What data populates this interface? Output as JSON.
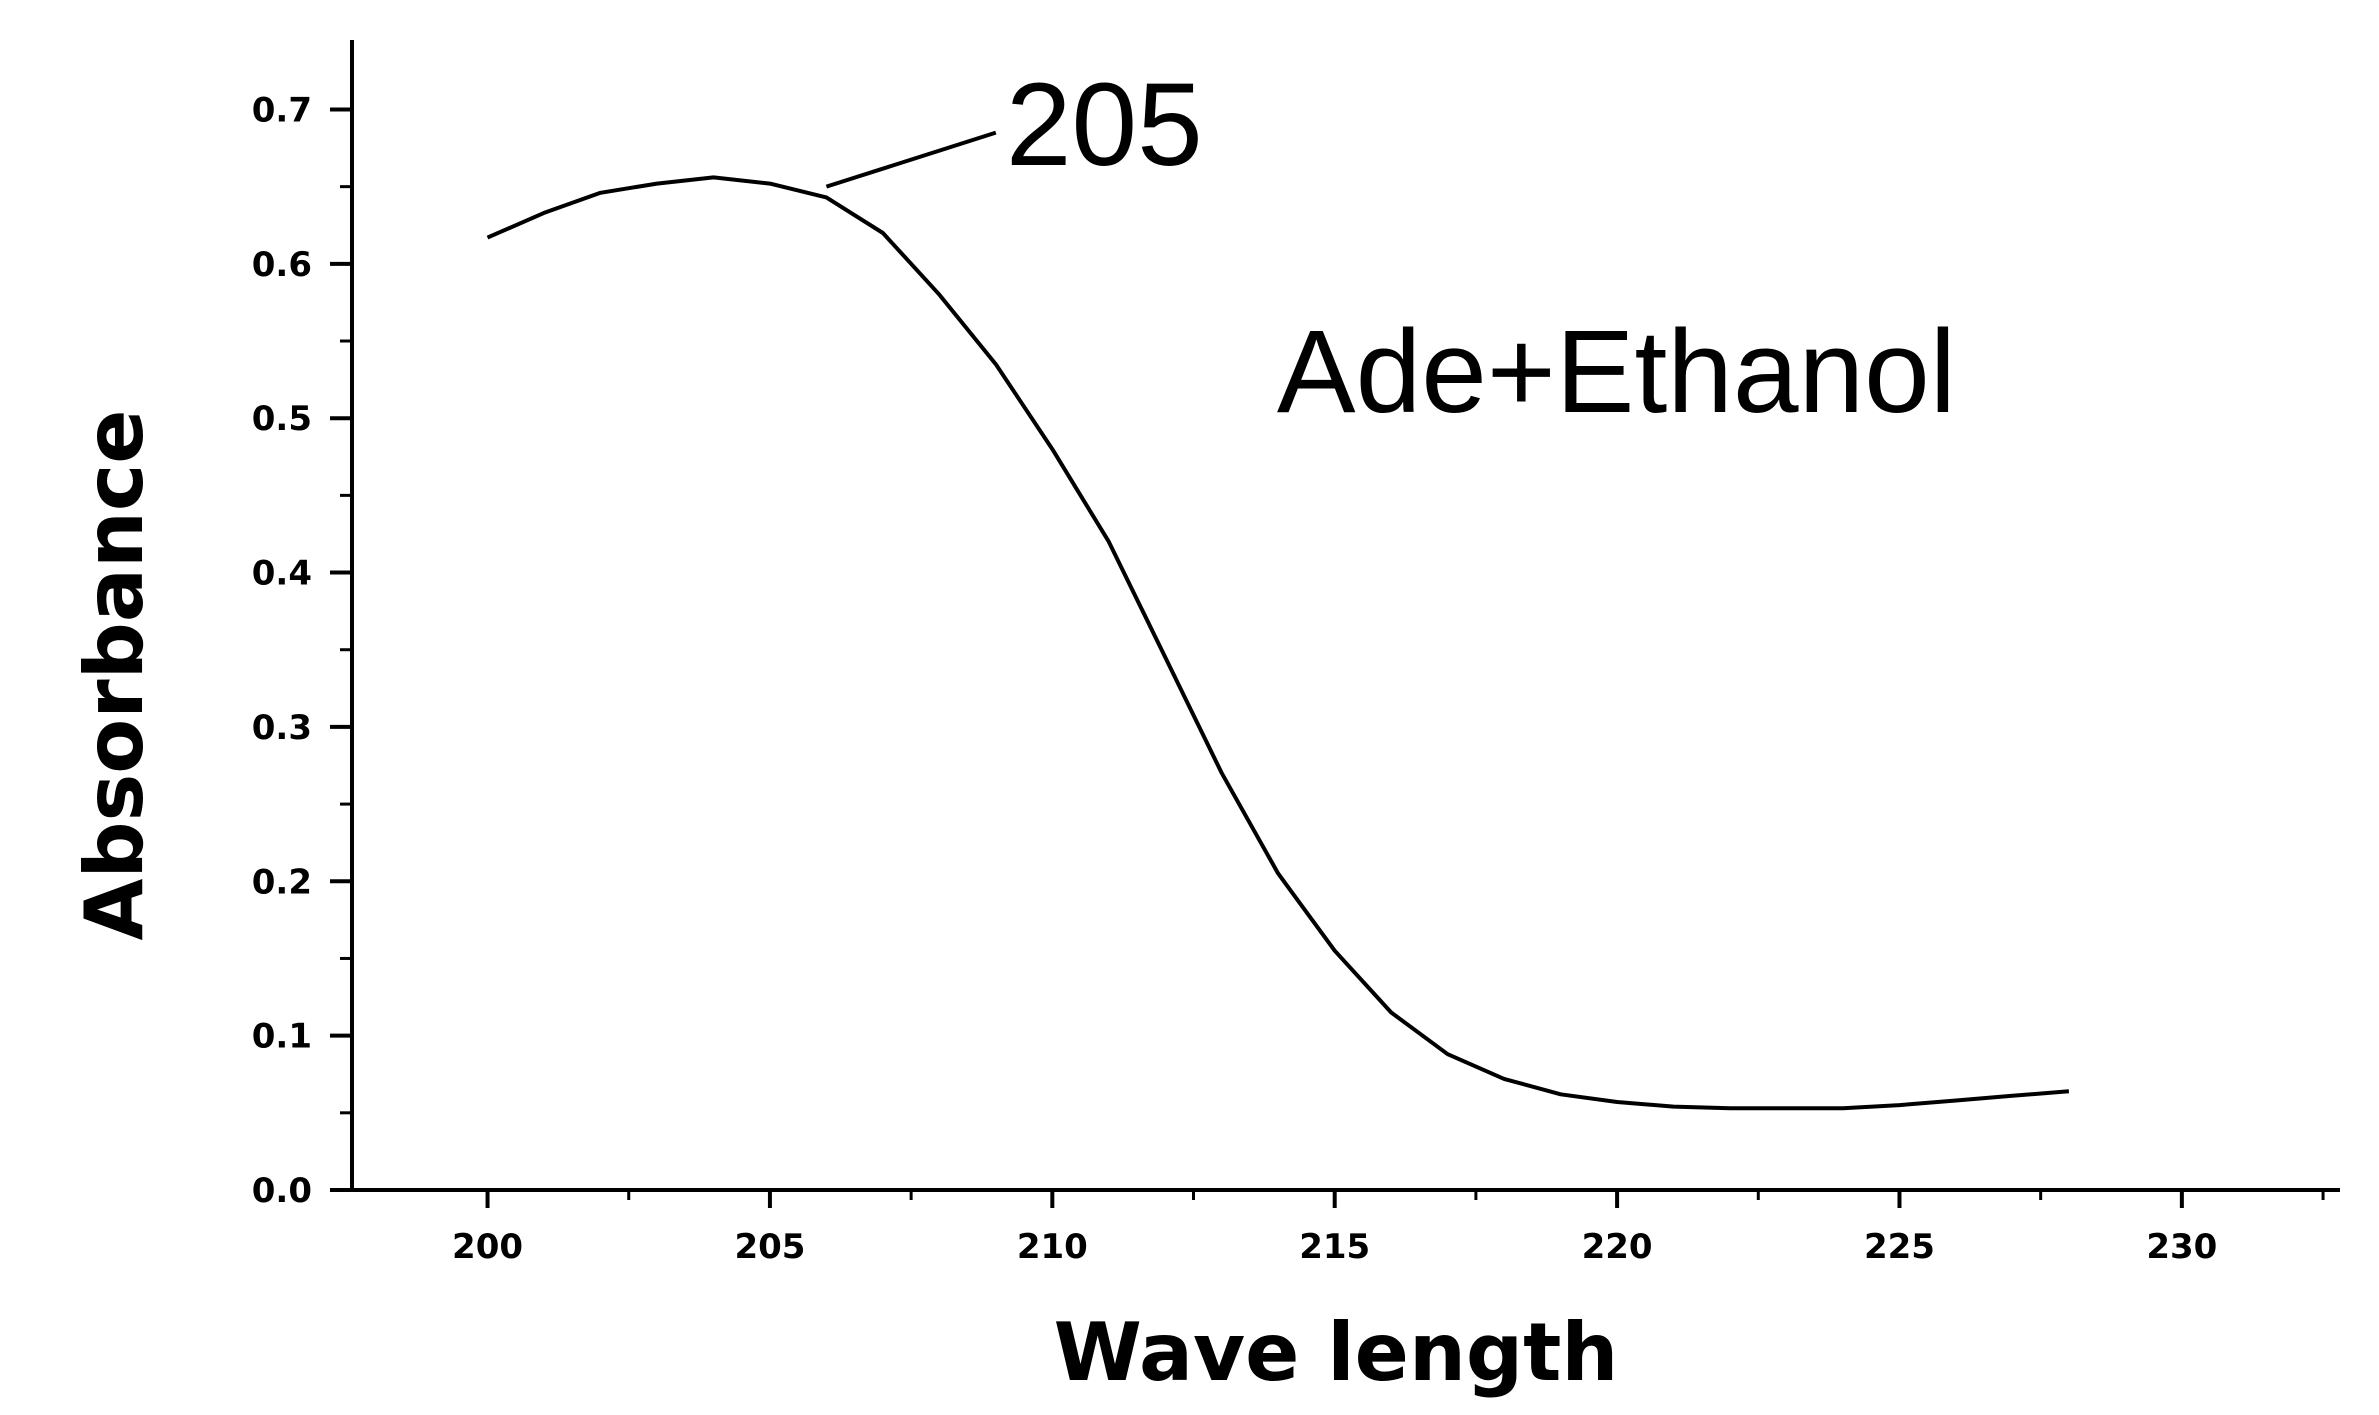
{
  "chart_data": {
    "type": "line",
    "title": "",
    "xlabel": "Wave length",
    "ylabel": "Absorbance",
    "xlim": [
      197.6,
      232.8
    ],
    "ylim": [
      0.0,
      0.745
    ],
    "x_ticks": [
      200,
      205,
      210,
      215,
      220,
      225,
      230
    ],
    "x_tick_labels": [
      "200",
      "205",
      "210",
      "215",
      "220",
      "225",
      "230"
    ],
    "y_ticks": [
      0.0,
      0.1,
      0.2,
      0.3,
      0.4,
      0.5,
      0.6,
      0.7
    ],
    "y_tick_labels": [
      "0.0",
      "0.1",
      "0.2",
      "0.3",
      "0.4",
      "0.5",
      "0.6",
      "0.7"
    ],
    "grid": false,
    "series": [
      {
        "color": "#000000",
        "x": [
          200,
          201,
          202,
          203,
          204,
          205,
          206,
          207,
          208,
          209,
          210,
          211,
          212,
          213,
          214,
          215,
          216,
          217,
          218,
          219,
          220,
          221,
          222,
          223,
          224,
          225,
          226,
          227,
          228
        ],
        "y": [
          0.617,
          0.633,
          0.646,
          0.652,
          0.656,
          0.652,
          0.643,
          0.62,
          0.58,
          0.535,
          0.48,
          0.42,
          0.345,
          0.27,
          0.205,
          0.155,
          0.115,
          0.088,
          0.072,
          0.062,
          0.057,
          0.054,
          0.053,
          0.053,
          0.053,
          0.055,
          0.058,
          0.061,
          0.064
        ]
      }
    ],
    "annotations": [
      {
        "text": "205",
        "x": 209,
        "y": 0.69,
        "leader_from": [
          206,
          0.65
        ],
        "leader_to": [
          209,
          0.685
        ]
      },
      {
        "text": "Ade+Ethanol",
        "x": 213.8,
        "y": 0.53
      }
    ]
  }
}
